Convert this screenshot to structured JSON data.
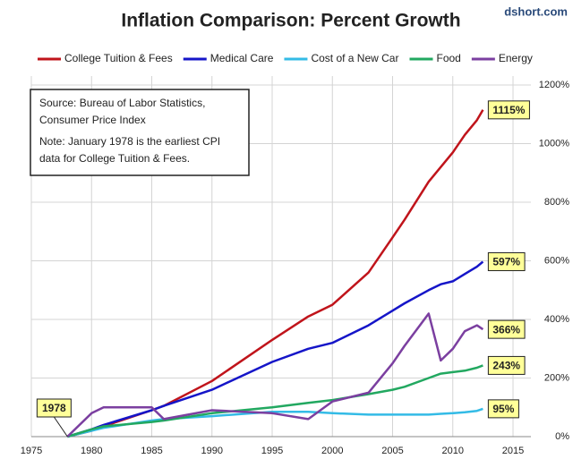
{
  "chart_data": {
    "type": "line",
    "title": "Inflation Comparison: Percent Growth",
    "watermark": "dshort.com",
    "note_lines": [
      "Source: Bureau of Labor Statistics,",
      "Consumer Price Index",
      "Note: January 1978  is the earliest CPI",
      "data for College Tuition & Fees."
    ],
    "annotations": [
      "1978"
    ],
    "x": [
      1978,
      1980,
      1981,
      1985,
      1986,
      1990,
      1995,
      1998,
      2000,
      2003,
      2005,
      2006,
      2008,
      2009,
      2010,
      2011,
      2012,
      2012.5
    ],
    "series": [
      {
        "name": "College Tuition & Fees",
        "color": "#c0141b",
        "values": [
          0,
          20,
          35,
          90,
          105,
          190,
          330,
          410,
          450,
          560,
          680,
          740,
          870,
          920,
          970,
          1030,
          1080,
          1115
        ],
        "value_labels": [
          null,
          null,
          null,
          null,
          null,
          null,
          null,
          null,
          null,
          null,
          null,
          null,
          null,
          null,
          null,
          null,
          null,
          "1115%"
        ]
      },
      {
        "name": "Medical Care",
        "color": "#1515c8",
        "values": [
          0,
          25,
          40,
          90,
          105,
          160,
          255,
          300,
          320,
          380,
          430,
          455,
          500,
          520,
          530,
          555,
          580,
          597
        ],
        "value_labels": [
          null,
          null,
          null,
          null,
          null,
          null,
          null,
          null,
          null,
          null,
          null,
          null,
          null,
          null,
          null,
          null,
          null,
          "597%"
        ]
      },
      {
        "name": "Cost of a New Car",
        "color": "#33bbe6",
        "values": [
          0,
          20,
          30,
          55,
          60,
          70,
          85,
          85,
          80,
          75,
          75,
          75,
          75,
          78,
          80,
          83,
          88,
          95
        ],
        "value_labels": [
          null,
          null,
          null,
          null,
          null,
          null,
          null,
          null,
          null,
          null,
          null,
          null,
          null,
          null,
          null,
          null,
          null,
          "95%"
        ]
      },
      {
        "name": "Food",
        "color": "#22a860",
        "values": [
          0,
          25,
          35,
          50,
          55,
          80,
          100,
          115,
          125,
          145,
          160,
          170,
          200,
          215,
          220,
          225,
          235,
          243
        ],
        "value_labels": [
          null,
          null,
          null,
          null,
          null,
          null,
          null,
          null,
          null,
          null,
          null,
          null,
          null,
          null,
          null,
          null,
          null,
          "243%"
        ]
      },
      {
        "name": "Energy",
        "color": "#7b3fa0",
        "values": [
          0,
          80,
          100,
          100,
          60,
          90,
          80,
          60,
          120,
          150,
          250,
          310,
          420,
          260,
          300,
          360,
          380,
          366
        ],
        "value_labels": [
          null,
          null,
          null,
          null,
          null,
          null,
          null,
          null,
          null,
          null,
          null,
          null,
          null,
          null,
          null,
          null,
          null,
          "366%"
        ]
      }
    ],
    "xlim": [
      1975,
      2015
    ],
    "xticks": [
      1975,
      1980,
      1985,
      1990,
      1995,
      2000,
      2005,
      2010,
      2015
    ],
    "ylim": [
      0,
      1200
    ],
    "yticks": [
      {
        "value": 0,
        "label": "0%"
      },
      {
        "value": 200,
        "label": "200%"
      },
      {
        "value": 400,
        "label": "400%"
      },
      {
        "value": 600,
        "label": "600%"
      },
      {
        "value": 800,
        "label": "800%"
      },
      {
        "value": 1000,
        "label": "1000%"
      },
      {
        "value": 1200,
        "label": "1200%"
      }
    ],
    "grid": true
  }
}
